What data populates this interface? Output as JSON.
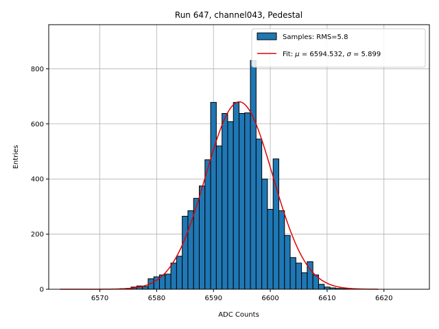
{
  "chart_data": {
    "type": "bar",
    "title": "Run 647, channel043, Pedestal",
    "xlabel": "ADC Counts",
    "ylabel": "Entries",
    "xlim": [
      6561,
      6628
    ],
    "ylim": [
      0,
      960
    ],
    "xticks": [
      6570,
      6580,
      6590,
      6600,
      6610,
      6620
    ],
    "yticks": [
      0,
      200,
      400,
      600,
      800
    ],
    "grid": true,
    "legend_position": "top-right",
    "colors": {
      "bars": "#1f77b4",
      "bar_edge": "#000000",
      "fit": "#e00000",
      "grid": "#b0b0b0"
    },
    "histogram": {
      "name": "Samples: RMS=5.8",
      "bin_width": 1,
      "bin_centers": [
        6574,
        6575,
        6576,
        6577,
        6578,
        6579,
        6580,
        6581,
        6582,
        6583,
        6584,
        6585,
        6586,
        6587,
        6588,
        6589,
        6590,
        6591,
        6592,
        6593,
        6594,
        6595,
        6596,
        6597,
        6598,
        6599,
        6600,
        6601,
        6602,
        6603,
        6604,
        6605,
        6606,
        6607,
        6608,
        6609,
        6610,
        6611,
        6612,
        6613,
        6614,
        6615
      ],
      "values": [
        2,
        3,
        8,
        12,
        10,
        38,
        45,
        52,
        55,
        95,
        120,
        265,
        285,
        330,
        375,
        470,
        678,
        520,
        638,
        608,
        678,
        638,
        640,
        830,
        545,
        400,
        290,
        473,
        285,
        195,
        115,
        95,
        60,
        100,
        52,
        18,
        8,
        5,
        3,
        2,
        1,
        1
      ]
    },
    "fit": {
      "name": "Fit: μ = 6594.532, σ = 5.899",
      "label_prefix": "Fit: ",
      "mu_symbol": "μ",
      "mu_value": "6594.532",
      "sigma_symbol": "σ",
      "sigma_value": "5.899",
      "mu": 6594.532,
      "sigma": 5.899,
      "amplitude": 680,
      "x_range": [
        6563,
        6619
      ]
    }
  }
}
